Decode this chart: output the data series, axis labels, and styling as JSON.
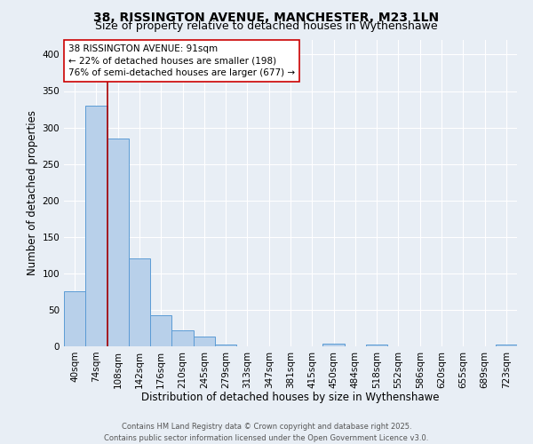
{
  "title_line1": "38, RISSINGTON AVENUE, MANCHESTER, M23 1LN",
  "title_line2": "Size of property relative to detached houses in Wythenshawe",
  "xlabel": "Distribution of detached houses by size in Wythenshawe",
  "ylabel": "Number of detached properties",
  "categories": [
    "40sqm",
    "74sqm",
    "108sqm",
    "142sqm",
    "176sqm",
    "210sqm",
    "245sqm",
    "279sqm",
    "313sqm",
    "347sqm",
    "381sqm",
    "415sqm",
    "450sqm",
    "484sqm",
    "518sqm",
    "552sqm",
    "586sqm",
    "620sqm",
    "655sqm",
    "689sqm",
    "723sqm"
  ],
  "values": [
    75,
    330,
    285,
    120,
    43,
    22,
    13,
    3,
    0,
    0,
    0,
    0,
    4,
    0,
    3,
    0,
    0,
    0,
    0,
    0,
    3
  ],
  "bar_color": "#b8d0ea",
  "bar_edge_color": "#5b9bd5",
  "vline_x": 1.5,
  "vline_color": "#aa0000",
  "annotation_title": "38 RISSINGTON AVENUE: 91sqm",
  "annotation_line2": "← 22% of detached houses are smaller (198)",
  "annotation_line3": "76% of semi-detached houses are larger (677) →",
  "annotation_box_color": "#ffffff",
  "annotation_box_edge": "#cc0000",
  "footer_line1": "Contains HM Land Registry data © Crown copyright and database right 2025.",
  "footer_line2": "Contains public sector information licensed under the Open Government Licence v3.0.",
  "ylim": [
    0,
    420
  ],
  "yticks": [
    0,
    50,
    100,
    150,
    200,
    250,
    300,
    350,
    400
  ],
  "background_color": "#e8eef5",
  "plot_background_color": "#e8eef5",
  "grid_color": "#ffffff",
  "title_fontsize": 10,
  "subtitle_fontsize": 9,
  "axis_label_fontsize": 8.5,
  "tick_fontsize": 7.5,
  "annotation_fontsize": 7.5,
  "footer_fontsize": 6.0
}
